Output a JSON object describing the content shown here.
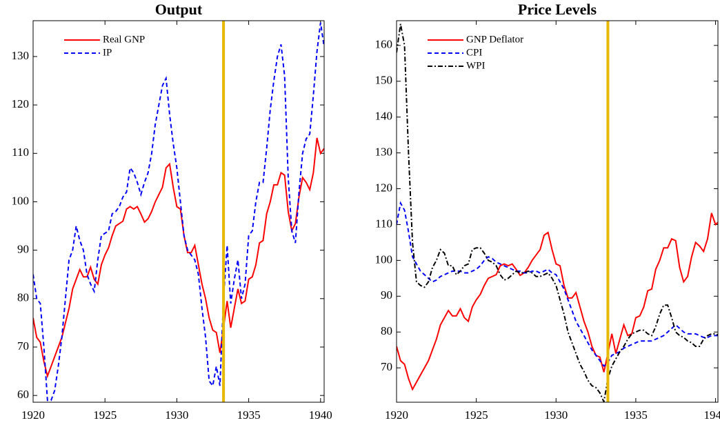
{
  "chart_data": [
    {
      "type": "line",
      "title": "Output",
      "x": [
        1920,
        1920.25,
        1920.5,
        1920.75,
        1921,
        1921.25,
        1921.5,
        1921.75,
        1922,
        1922.25,
        1922.5,
        1922.75,
        1923,
        1923.25,
        1923.5,
        1923.75,
        1924,
        1924.25,
        1924.5,
        1924.75,
        1925,
        1925.25,
        1925.5,
        1925.75,
        1926,
        1926.25,
        1926.5,
        1926.75,
        1927,
        1927.25,
        1927.5,
        1927.75,
        1928,
        1928.25,
        1928.5,
        1928.75,
        1929,
        1929.25,
        1929.5,
        1929.75,
        1930,
        1930.25,
        1930.5,
        1930.75,
        1931,
        1931.25,
        1931.5,
        1931.75,
        1932,
        1932.25,
        1932.5,
        1932.75,
        1933,
        1933.25,
        1933.5,
        1933.75,
        1934,
        1934.25,
        1934.5,
        1934.75,
        1935,
        1935.25,
        1935.5,
        1935.75,
        1936,
        1936.25,
        1936.5,
        1936.75,
        1937,
        1937.25,
        1937.5,
        1937.75,
        1938,
        1938.25,
        1938.5,
        1938.75,
        1939,
        1939.25,
        1939.5,
        1939.75,
        1940,
        1940.25
      ],
      "series": [
        {
          "name": "Real GNP",
          "color": "#ff0000",
          "style": "solid",
          "values": [
            76,
            72,
            71,
            67,
            64,
            66,
            68,
            70,
            72,
            75,
            78,
            82,
            84,
            86,
            84.5,
            84.5,
            86.5,
            84,
            83,
            87,
            89,
            90.5,
            93,
            95,
            95.5,
            96,
            98.5,
            99,
            98.5,
            99,
            97.5,
            95.8,
            96.5,
            98,
            100,
            101.5,
            103,
            107,
            107.8,
            103,
            99,
            98.5,
            93,
            89.5,
            89.5,
            91,
            87,
            83,
            80,
            76,
            73.5,
            73,
            68.8,
            74,
            79.5,
            74,
            78,
            82,
            79,
            79.5,
            84,
            84.5,
            87,
            91.5,
            92,
            97.5,
            100,
            103.5,
            103.5,
            106,
            105.5,
            98,
            94,
            95.5,
            101,
            105,
            104,
            102.5,
            106,
            113.2,
            110,
            111
          ]
        },
        {
          "name": "IP",
          "color": "#0000ff",
          "style": "dashed",
          "values": [
            85,
            80,
            79,
            70,
            59,
            59,
            61,
            66,
            72,
            80,
            88,
            90,
            95,
            92,
            90,
            85,
            83,
            81.5,
            88,
            93,
            93.5,
            94,
            97.5,
            98,
            99,
            101,
            102,
            107,
            106,
            104,
            101.5,
            104,
            106,
            110,
            116,
            120,
            124,
            125.5,
            118,
            112,
            107,
            100,
            93,
            90,
            89,
            88,
            85,
            78,
            72,
            63,
            62,
            66,
            62,
            80,
            91,
            79,
            84,
            88,
            80,
            83,
            93,
            94,
            100,
            104,
            104,
            111,
            119,
            125,
            130,
            132.5,
            126,
            105,
            94,
            91.5,
            102,
            110,
            113,
            114,
            122,
            131,
            137,
            132
          ]
        }
      ],
      "xlim": [
        1920,
        1940.25
      ],
      "ylim": [
        58.6,
        137.4
      ],
      "xticks": [
        1920,
        1925,
        1930,
        1935,
        1940
      ],
      "yticks": [
        60,
        70,
        80,
        90,
        100,
        110,
        120,
        130
      ],
      "vline": 1933.25,
      "vline_color": "#e6b800",
      "legend": "upper left"
    },
    {
      "type": "line",
      "title": "Price Levels",
      "x": [
        1920,
        1920.25,
        1920.5,
        1920.75,
        1921,
        1921.25,
        1921.5,
        1921.75,
        1922,
        1922.25,
        1922.5,
        1922.75,
        1923,
        1923.25,
        1923.5,
        1923.75,
        1924,
        1924.25,
        1924.5,
        1924.75,
        1925,
        1925.25,
        1925.5,
        1925.75,
        1926,
        1926.25,
        1926.5,
        1926.75,
        1927,
        1927.25,
        1927.5,
        1927.75,
        1928,
        1928.25,
        1928.5,
        1928.75,
        1929,
        1929.25,
        1929.5,
        1929.75,
        1930,
        1930.25,
        1930.5,
        1930.75,
        1931,
        1931.25,
        1931.5,
        1931.75,
        1932,
        1932.25,
        1932.5,
        1932.75,
        1933,
        1933.25,
        1933.5,
        1933.75,
        1934,
        1934.25,
        1934.5,
        1934.75,
        1935,
        1935.25,
        1935.5,
        1935.75,
        1936,
        1936.25,
        1936.5,
        1936.75,
        1937,
        1937.25,
        1937.5,
        1937.75,
        1938,
        1938.25,
        1938.5,
        1938.75,
        1939,
        1939.25,
        1939.5,
        1939.75,
        1940,
        1940.25
      ],
      "series": [
        {
          "name": "GNP Deflator",
          "color": "#ff0000",
          "style": "solid",
          "values": [
            76,
            72,
            71,
            67,
            64,
            66,
            68,
            70,
            72,
            75,
            78,
            82,
            84,
            86,
            84.5,
            84.5,
            86.5,
            84,
            83,
            87,
            89,
            90.5,
            93,
            95,
            95.5,
            96,
            98.5,
            99,
            98.5,
            99,
            97.5,
            95.8,
            96.5,
            98,
            100,
            101.5,
            103,
            107,
            107.8,
            103,
            99,
            98.5,
            93,
            89.5,
            89.5,
            91,
            87,
            83,
            80,
            76,
            73.5,
            73,
            68.8,
            74,
            79.5,
            74,
            78,
            82,
            79,
            79.5,
            84,
            84.5,
            87,
            91.5,
            92,
            97.5,
            100,
            103.5,
            103.5,
            106,
            105.5,
            98,
            94,
            95.5,
            101,
            105,
            104,
            102.5,
            106,
            113.2,
            110,
            111
          ]
        },
        {
          "name": "CPI",
          "color": "#0000ff",
          "style": "dashed",
          "values": [
            110,
            116,
            114,
            108,
            101,
            99,
            97,
            96,
            95,
            94,
            94.5,
            95.5,
            96,
            96.5,
            97,
            97,
            97,
            96.5,
            96.5,
            97,
            97.5,
            98.5,
            100,
            101,
            100.5,
            99.5,
            99,
            98.5,
            98,
            97.5,
            97,
            97,
            96.5,
            96.5,
            97,
            97,
            96.5,
            97,
            97.5,
            96.5,
            96,
            94,
            92,
            89,
            86,
            83,
            81,
            79,
            77,
            75,
            73.5,
            72,
            70.5,
            71.5,
            73.5,
            74,
            74.5,
            75.5,
            76,
            76.5,
            77,
            77.5,
            77.5,
            77.5,
            77.5,
            78,
            78.5,
            79,
            80,
            81,
            82,
            81,
            80,
            79.5,
            79.5,
            79.5,
            79,
            78.5,
            78.5,
            79,
            79,
            79
          ]
        },
        {
          "name": "WPI",
          "color": "#000000",
          "style": "dashdot",
          "values": [
            158,
            166,
            160,
            130,
            105,
            94,
            93,
            92.5,
            94,
            98,
            100,
            103,
            102,
            98.5,
            98.5,
            96,
            97,
            98.5,
            99,
            103,
            103.5,
            103.5,
            102,
            100,
            99.5,
            98.5,
            96,
            94.5,
            95,
            96,
            97,
            96.5,
            96.5,
            97,
            96.5,
            95.5,
            95.5,
            96,
            96.5,
            95,
            93,
            89,
            85,
            80,
            77,
            74,
            71,
            69,
            66.5,
            65,
            64.5,
            63,
            60.5,
            67,
            70.5,
            72.5,
            74.5,
            76,
            78,
            79.5,
            80,
            80.5,
            80.5,
            79.5,
            79,
            81.5,
            85,
            87.5,
            87.5,
            84,
            80,
            79,
            78.5,
            77.5,
            77,
            76,
            76,
            78,
            79,
            79.5,
            79.5,
            79
          ]
        }
      ],
      "xlim": [
        1920,
        1940.15
      ],
      "ylim": [
        60.4,
        166.9
      ],
      "xticks": [
        1920,
        1925,
        1930,
        1935,
        1940
      ],
      "yticks": [
        70,
        80,
        90,
        100,
        110,
        120,
        130,
        140,
        150,
        160
      ],
      "vline": 1933.25,
      "vline_color": "#e6b800",
      "legend": "upper left"
    }
  ]
}
